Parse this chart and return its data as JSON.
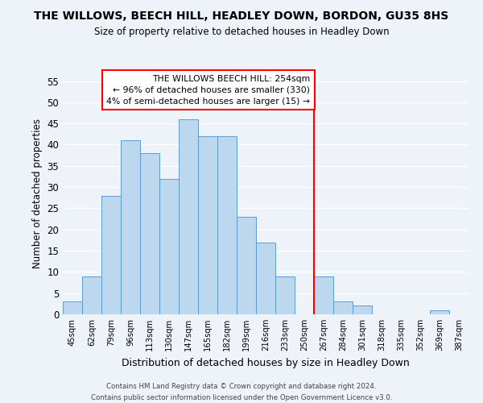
{
  "title": "THE WILLOWS, BEECH HILL, HEADLEY DOWN, BORDON, GU35 8HS",
  "subtitle": "Size of property relative to detached houses in Headley Down",
  "xlabel": "Distribution of detached houses by size in Headley Down",
  "ylabel": "Number of detached properties",
  "bin_labels": [
    "45sqm",
    "62sqm",
    "79sqm",
    "96sqm",
    "113sqm",
    "130sqm",
    "147sqm",
    "165sqm",
    "182sqm",
    "199sqm",
    "216sqm",
    "233sqm",
    "250sqm",
    "267sqm",
    "284sqm",
    "301sqm",
    "318sqm",
    "335sqm",
    "352sqm",
    "369sqm",
    "387sqm"
  ],
  "bar_values": [
    3,
    9,
    28,
    41,
    38,
    32,
    46,
    42,
    42,
    23,
    17,
    9,
    0,
    9,
    3,
    2,
    0,
    0,
    0,
    1,
    0
  ],
  "bar_color": "#bdd7ee",
  "bar_edge_color": "#5b9bd5",
  "reference_line_index": 12.5,
  "reference_line_label": "THE WILLOWS BEECH HILL: 254sqm",
  "annotation_line1": "← 96% of detached houses are smaller (330)",
  "annotation_line2": "4% of semi-detached houses are larger (15) →",
  "ylim": [
    0,
    57
  ],
  "yticks": [
    0,
    5,
    10,
    15,
    20,
    25,
    30,
    35,
    40,
    45,
    50,
    55
  ],
  "footnote1": "Contains HM Land Registry data © Crown copyright and database right 2024.",
  "footnote2": "Contains public sector information licensed under the Open Government Licence v3.0.",
  "bg_color": "#eef2f9",
  "grid_color": "#ffffff"
}
